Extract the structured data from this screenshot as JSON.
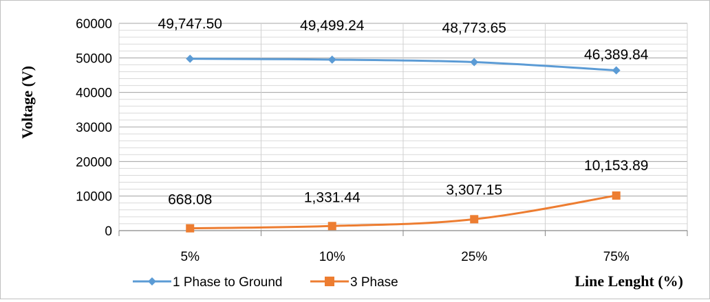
{
  "chart_data": {
    "type": "line",
    "title": "",
    "xlabel": "Line Lenght (%)",
    "ylabel": "Voltage (V)",
    "categories": [
      "5%",
      "10%",
      "25%",
      "75%"
    ],
    "ylim": [
      0,
      60000
    ],
    "yticks": [
      "0",
      "10000",
      "20000",
      "30000",
      "40000",
      "50000",
      "60000"
    ],
    "minor_grid_step": 2000,
    "grid": true,
    "legend_position": "bottom-left",
    "series": [
      {
        "name": "1 Phase to Ground",
        "values": [
          49747.5,
          49499.24,
          48773.65,
          46389.84
        ],
        "labels": [
          "49,747.50",
          "49,499.24",
          "48,773.65",
          "46,389.84"
        ],
        "color": "#5b9bd5",
        "marker": "diamond"
      },
      {
        "name": "3 Phase",
        "values": [
          668.08,
          1331.44,
          3307.15,
          10153.89
        ],
        "labels": [
          "668.08",
          "1,331.44",
          "3,307.15",
          "10,153.89"
        ],
        "color": "#ed7d31",
        "marker": "square"
      }
    ]
  }
}
